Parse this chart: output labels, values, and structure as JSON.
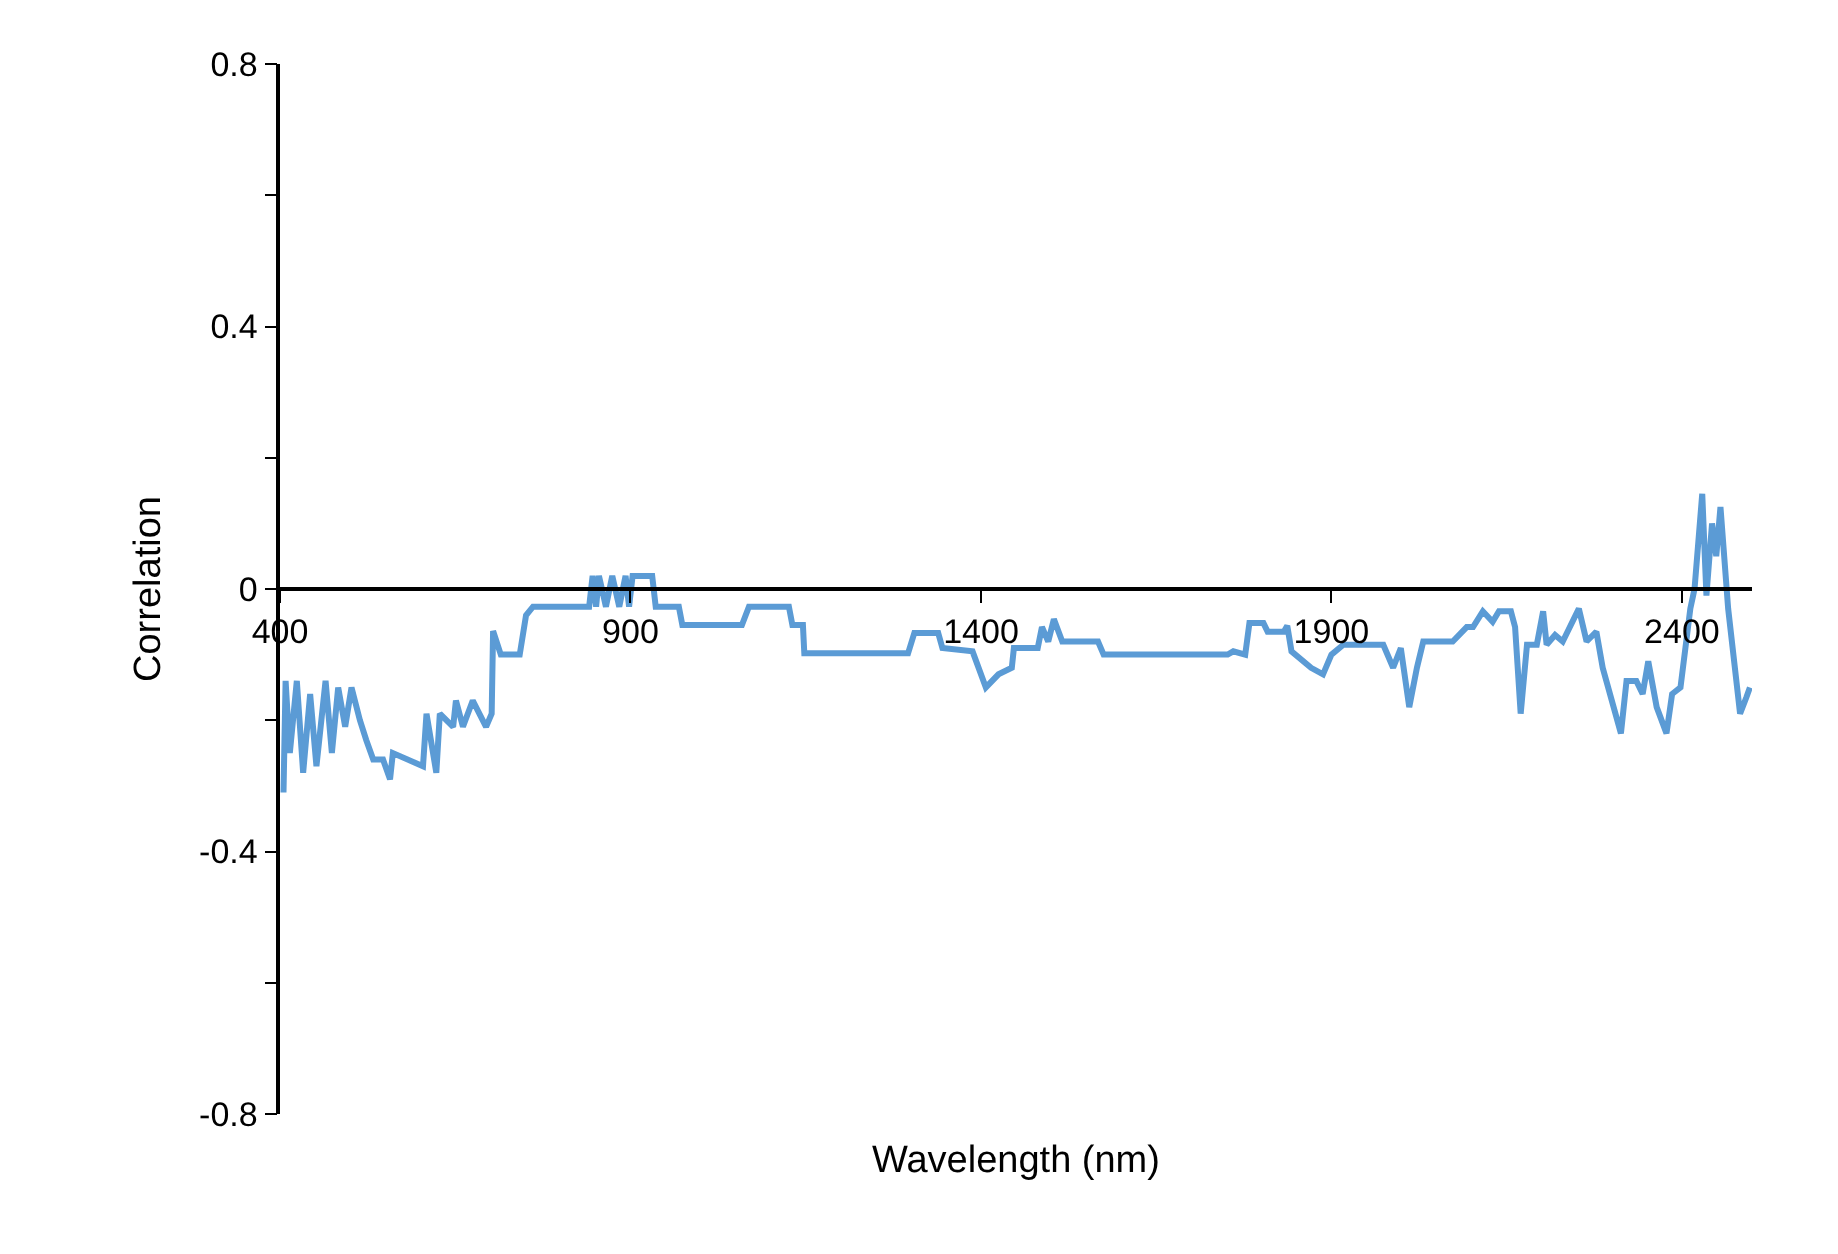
{
  "chart_data": {
    "type": "line",
    "xlabel": "Wavelength (nm)",
    "ylabel": "Correlation",
    "xlim": [
      400,
      2500
    ],
    "xticks": [
      400,
      900,
      1400,
      1900,
      2400
    ],
    "ylim": [
      -0.8,
      0.8
    ],
    "yticks": [
      -0.8,
      {
        "value": -0.6,
        "label": null
      },
      -0.4,
      {
        "value": -0.2,
        "label": null
      },
      0,
      {
        "value": 0.2,
        "label": null
      },
      0.4,
      {
        "value": 0.6,
        "label": null
      },
      0.8
    ],
    "legend": false,
    "marker": "none",
    "line_style": "solid",
    "series": [
      {
        "color": "#5b9bd5",
        "x": [
          405,
          408,
          414,
          424,
          433,
          443,
          452,
          465,
          474,
          483,
          493,
          502,
          514,
          523,
          533,
          547,
          557,
          561,
          604,
          609,
          623,
          628,
          647,
          651,
          661,
          675,
          694,
          702,
          704,
          715,
          742,
          751,
          761,
          841,
          846,
          851,
          855,
          865,
          874,
          884,
          893,
          898,
          903,
          931,
          936,
          969,
          974,
          1059,
          1069,
          1126,
          1131,
          1146,
          1148,
          1296,
          1305,
          1339,
          1345,
          1388,
          1407,
          1425,
          1444,
          1447,
          1481,
          1487,
          1496,
          1504,
          1516,
          1567,
          1575,
          1752,
          1760,
          1777,
          1783,
          1803,
          1809,
          1832,
          1837,
          1843,
          1871,
          1888,
          1900,
          1917,
          1974,
          1988,
          1999,
          2011,
          2022,
          2031,
          2073,
          2093,
          2102,
          2116,
          2130,
          2139,
          2156,
          2162,
          2170,
          2179,
          2193,
          2202,
          2207,
          2219,
          2230,
          2253,
          2264,
          2278,
          2287,
          2313,
          2321,
          2335,
          2344,
          2352,
          2364,
          2378,
          2386,
          2398,
          2412,
          2418,
          2429,
          2435,
          2443,
          2449,
          2455,
          2466,
          2483,
          2492,
          2497
        ],
        "values": [
          -0.31,
          -0.14,
          -0.25,
          -0.14,
          -0.28,
          -0.16,
          -0.27,
          -0.14,
          -0.25,
          -0.15,
          -0.21,
          -0.15,
          -0.2,
          -0.23,
          -0.26,
          -0.26,
          -0.29,
          -0.25,
          -0.27,
          -0.19,
          -0.28,
          -0.19,
          -0.21,
          -0.17,
          -0.21,
          -0.17,
          -0.21,
          -0.19,
          -0.064,
          -0.1,
          -0.1,
          -0.04,
          -0.027,
          -0.027,
          0.02,
          -0.027,
          0.02,
          -0.027,
          0.02,
          -0.027,
          0.02,
          -0.027,
          0.02,
          0.02,
          -0.027,
          -0.027,
          -0.055,
          -0.055,
          -0.027,
          -0.027,
          -0.055,
          -0.055,
          -0.098,
          -0.098,
          -0.067,
          -0.067,
          -0.09,
          -0.095,
          -0.15,
          -0.13,
          -0.12,
          -0.09,
          -0.09,
          -0.058,
          -0.08,
          -0.046,
          -0.08,
          -0.08,
          -0.1,
          -0.1,
          -0.095,
          -0.1,
          -0.052,
          -0.052,
          -0.065,
          -0.065,
          -0.056,
          -0.095,
          -0.12,
          -0.13,
          -0.1,
          -0.085,
          -0.085,
          -0.12,
          -0.09,
          -0.18,
          -0.12,
          -0.08,
          -0.08,
          -0.058,
          -0.058,
          -0.034,
          -0.05,
          -0.034,
          -0.034,
          -0.058,
          -0.19,
          -0.085,
          -0.085,
          -0.034,
          -0.085,
          -0.07,
          -0.08,
          -0.03,
          -0.08,
          -0.065,
          -0.12,
          -0.22,
          -0.14,
          -0.14,
          -0.16,
          -0.11,
          -0.18,
          -0.22,
          -0.16,
          -0.15,
          -0.03,
          0,
          0.145,
          -0.01,
          0.1,
          0.05,
          0.125,
          -0.03,
          -0.19,
          -0.165,
          -0.15
        ]
      }
    ]
  }
}
